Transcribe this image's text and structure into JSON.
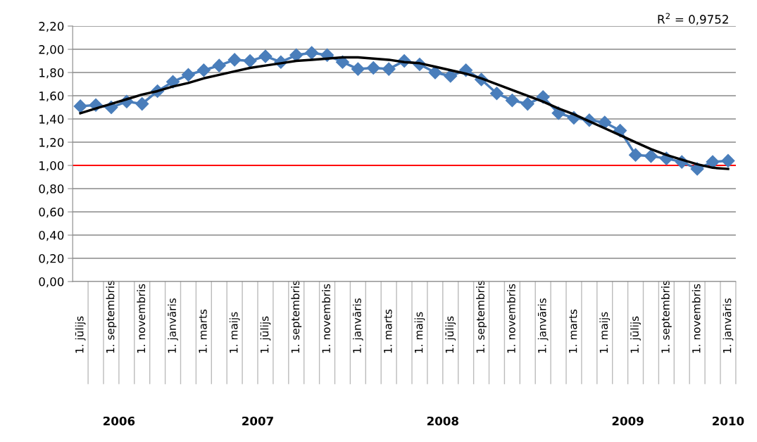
{
  "chart_data": {
    "type": "line",
    "categories": [
      "1. jūlijs",
      null,
      "1. septembris",
      null,
      "1. novembris",
      null,
      "1. janvāris",
      null,
      "1. marts",
      null,
      "1. maijs",
      null,
      "1. jūlijs",
      null,
      "1. septembris",
      null,
      "1. novembris",
      null,
      "1. janvāris",
      null,
      "1. marts",
      null,
      "1. maijs",
      null,
      "1. jūlijs",
      null,
      "1. septembris",
      null,
      "1. novembris",
      null,
      "1. janvāris",
      null,
      "1. marts",
      null,
      "1. maijs",
      null,
      "1. jūlijs",
      null,
      "1. septembris",
      null,
      "1. novembris",
      null,
      "1. janvāris"
    ],
    "series": [
      {
        "color": "#4a7ebb",
        "marker": "diamond",
        "values": [
          1.51,
          1.52,
          1.5,
          1.55,
          1.53,
          1.64,
          1.72,
          1.78,
          1.82,
          1.86,
          1.91,
          1.9,
          1.94,
          1.89,
          1.95,
          1.97,
          1.95,
          1.89,
          1.83,
          1.84,
          1.83,
          1.9,
          1.87,
          1.8,
          1.77,
          1.82,
          1.74,
          1.62,
          1.56,
          1.53,
          1.59,
          1.45,
          1.41,
          1.39,
          1.37,
          1.3,
          1.09,
          1.08,
          1.06,
          1.03,
          0.97,
          1.03,
          1.04
        ]
      },
      {
        "color": "#000000",
        "marker": "none",
        "values": [
          1.45,
          1.49,
          1.53,
          1.57,
          1.61,
          1.64,
          1.68,
          1.71,
          1.75,
          1.78,
          1.81,
          1.84,
          1.86,
          1.88,
          1.9,
          1.91,
          1.92,
          1.93,
          1.93,
          1.92,
          1.91,
          1.89,
          1.88,
          1.85,
          1.82,
          1.79,
          1.75,
          1.7,
          1.65,
          1.6,
          1.55,
          1.49,
          1.44,
          1.38,
          1.32,
          1.26,
          1.2,
          1.14,
          1.09,
          1.05,
          1.01,
          0.98,
          0.97
        ]
      }
    ],
    "ylim": [
      0,
      2.2
    ],
    "yticks": [
      {
        "value": 0,
        "label": "0,00"
      },
      {
        "value": 0.2,
        "label": "0,20"
      },
      {
        "value": 0.4,
        "label": "0,40"
      },
      {
        "value": 0.6,
        "label": "0,60"
      },
      {
        "value": 0.8,
        "label": "0,80"
      },
      {
        "value": 1.0,
        "label": "1,00"
      },
      {
        "value": 1.2,
        "label": "1,20"
      },
      {
        "value": 1.4,
        "label": "1,40"
      },
      {
        "value": 1.6,
        "label": "1,60"
      },
      {
        "value": 1.8,
        "label": "1,80"
      },
      {
        "value": 2.0,
        "label": "2,00"
      },
      {
        "value": 2.2,
        "label": "2,20"
      }
    ],
    "grid": "y",
    "ref_lines": [
      {
        "axis": "y",
        "value": 1.0,
        "color": "#ff0000"
      }
    ],
    "annotations": [
      "R$^{2}$ = 0,9752",
      "2006",
      "2007",
      "2008",
      "2009",
      "2010"
    ]
  }
}
